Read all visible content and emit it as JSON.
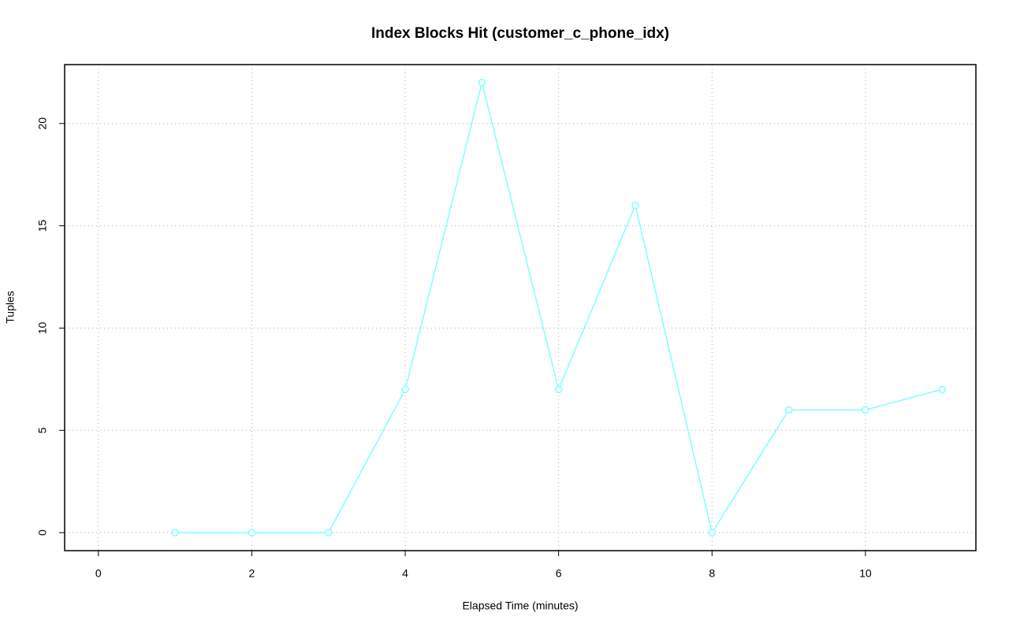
{
  "chart_data": {
    "type": "line",
    "title": "Index Blocks Hit (customer_c_phone_idx)",
    "x_label": "Elapsed Time (minutes)",
    "y_label": "Tuples",
    "x": [
      1,
      2,
      3,
      4,
      5,
      6,
      7,
      8,
      9,
      10,
      11
    ],
    "series": [
      {
        "name": "customer_c_phone_idx",
        "color": "#7fffff",
        "values": [
          0,
          0,
          0,
          7,
          22,
          7,
          16,
          0,
          6,
          6,
          7
        ]
      }
    ],
    "xlim": [
      -0.44,
      11.44
    ],
    "xticks": [
      0,
      2,
      4,
      6,
      8,
      10
    ],
    "ylim": [
      -0.88,
      22.88
    ],
    "yticks": [
      0,
      5,
      10,
      15,
      20
    ],
    "grid": true
  }
}
